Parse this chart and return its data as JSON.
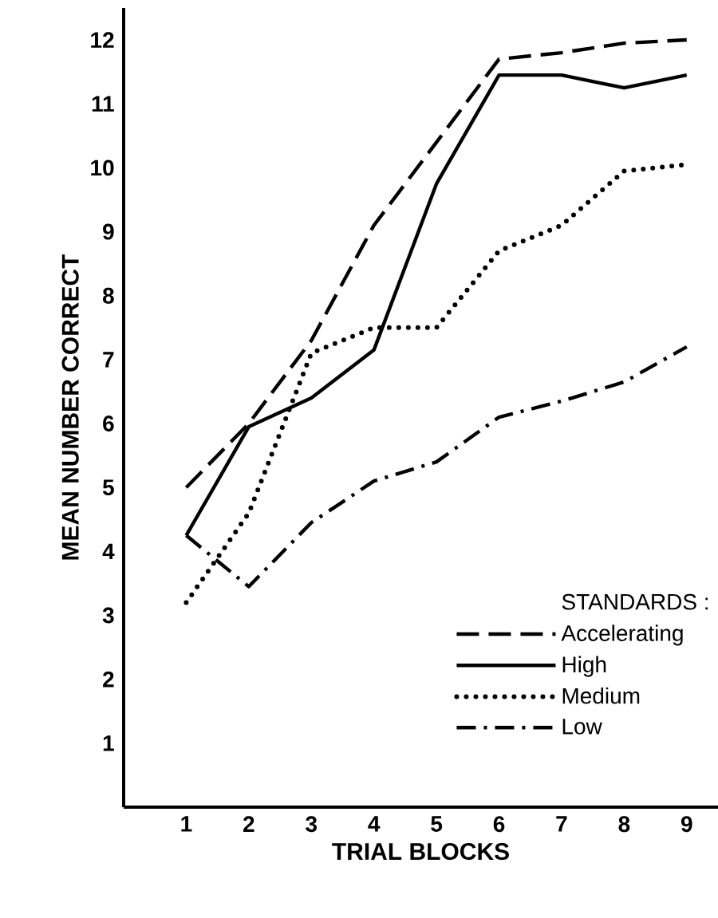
{
  "chart_data": {
    "type": "line",
    "xlabel": "TRIAL BLOCKS",
    "ylabel": "MEAN NUMBER CORRECT",
    "legend_title": "STANDARDS :",
    "x": [
      1,
      2,
      3,
      4,
      5,
      6,
      7,
      8,
      9
    ],
    "series": [
      {
        "name": "Accelerating",
        "color": "#000000",
        "line_style": "dashed",
        "values": [
          5.0,
          6.0,
          7.3,
          9.1,
          10.4,
          11.7,
          11.8,
          11.95,
          12.0
        ]
      },
      {
        "name": "High",
        "color": "#000000",
        "line_style": "solid",
        "values": [
          4.25,
          5.95,
          6.4,
          7.15,
          9.75,
          11.45,
          11.45,
          11.25,
          11.45
        ]
      },
      {
        "name": "Medium",
        "color": "#000000",
        "line_style": "dotted",
        "values": [
          3.2,
          4.6,
          7.1,
          7.5,
          7.5,
          8.7,
          9.1,
          9.95,
          10.05
        ]
      },
      {
        "name": "Low",
        "color": "#000000",
        "line_style": "dashdotted",
        "values": [
          4.25,
          3.45,
          4.45,
          5.1,
          5.4,
          6.1,
          6.35,
          6.65,
          7.2
        ]
      }
    ],
    "xlim": [
      0,
      9.5
    ],
    "ylim": [
      0,
      12.5
    ],
    "xticks": [
      1,
      2,
      3,
      4,
      5,
      6,
      7,
      8,
      9
    ],
    "yticks": [
      1,
      2,
      3,
      4,
      5,
      6,
      7,
      8,
      9,
      10,
      11,
      12
    ],
    "grid": false,
    "legend": "bottom right"
  }
}
